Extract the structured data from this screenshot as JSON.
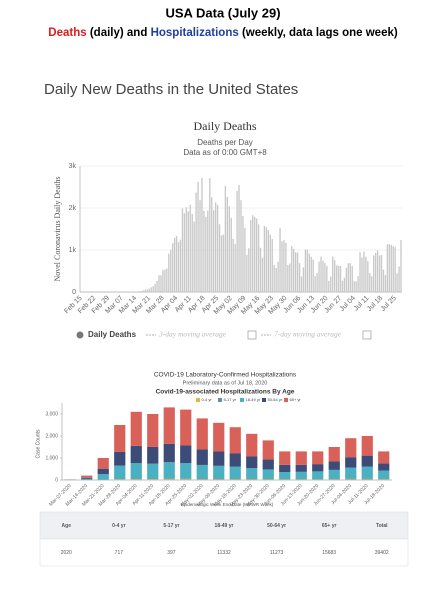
{
  "header": {
    "title": "USA Data (July 29)",
    "subtitle": [
      {
        "text": "Deaths",
        "color": "#d81e1e"
      },
      {
        "text": " (daily) and ",
        "color": "#000000"
      },
      {
        "text": "Hospitalizations",
        "color": "#1f3f9e"
      },
      {
        "text": " (weekly, data lags one week)",
        "color": "#000000"
      }
    ],
    "section_title": "Daily New Deaths in the United States"
  },
  "chart_data": [
    {
      "type": "bar",
      "title": "Daily Deaths",
      "subtitle": "Deaths per Day",
      "note": "Data as of 0:00 GMT+8",
      "y_label": "Novel Coronavirus Daily Deaths",
      "categories": [
        "Feb 15",
        null,
        null,
        null,
        null,
        null,
        null,
        "Feb 22",
        null,
        null,
        null,
        null,
        null,
        null,
        "Feb 29",
        null,
        null,
        null,
        null,
        null,
        null,
        "Mar 07",
        null,
        null,
        null,
        null,
        null,
        null,
        "Mar 14",
        null,
        null,
        null,
        null,
        null,
        null,
        "Mar 21",
        null,
        null,
        null,
        null,
        null,
        null,
        "Mar 28",
        null,
        null,
        null,
        null,
        null,
        null,
        "Apr 04",
        null,
        null,
        null,
        null,
        null,
        null,
        "Apr 11",
        null,
        null,
        null,
        null,
        null,
        null,
        "Apr 18",
        null,
        null,
        null,
        null,
        null,
        null,
        "Apr 25",
        null,
        null,
        null,
        null,
        null,
        null,
        "May 02",
        null,
        null,
        null,
        null,
        null,
        null,
        "May 09",
        null,
        null,
        null,
        null,
        null,
        null,
        "May 16",
        null,
        null,
        null,
        null,
        null,
        null,
        "May 23",
        null,
        null,
        null,
        null,
        null,
        null,
        "May 30",
        null,
        null,
        null,
        null,
        null,
        null,
        "Jun 06",
        null,
        null,
        null,
        null,
        null,
        null,
        "Jun 13",
        null,
        null,
        null,
        null,
        null,
        null,
        "Jun 20",
        null,
        null,
        null,
        null,
        null,
        null,
        "Jun 27",
        null,
        null,
        null,
        null,
        null,
        null,
        "Jul 04",
        null,
        null,
        null,
        null,
        null,
        null,
        "Jul 11",
        null,
        null,
        null,
        null,
        null,
        null,
        "Jul 18",
        null,
        null,
        null,
        null,
        null,
        null,
        "Jul 25",
        null,
        null,
        null
      ],
      "series": [
        {
          "name": "Daily Deaths",
          "color": "#c9c9c9",
          "values": [
            0,
            0,
            0,
            0,
            0,
            0,
            0,
            0,
            0,
            0,
            0,
            0,
            0,
            0,
            1,
            1,
            4,
            1,
            4,
            1,
            2,
            3,
            4,
            4,
            6,
            8,
            8,
            10,
            10,
            13,
            19,
            23,
            37,
            58,
            57,
            80,
            110,
            137,
            196,
            266,
            397,
            399,
            521,
            532,
            561,
            913,
            1011,
            1165,
            1290,
            1331,
            1187,
            1247,
            1991,
            1878,
            2016,
            1919,
            2078,
            1858,
            1678,
            2367,
            2625,
            2187,
            2715,
            1931,
            1789,
            1939,
            2711,
            2256,
            1946,
            2134,
            2076,
            1614,
            1346,
            1369,
            2526,
            2261,
            2043,
            1765,
            1266,
            1142,
            2404,
            2549,
            2184,
            1809,
            1523,
            886,
            1042,
            1713,
            1828,
            1790,
            1751,
            1610,
            1052,
            814,
            1576,
            1541,
            1474,
            1370,
            1261,
            645,
            571,
            720,
            1526,
            1208,
            1233,
            1170,
            643,
            679,
            1092,
            1029,
            946,
            941,
            687,
            373,
            589,
            1009,
            1013,
            913,
            837,
            770,
            377,
            450,
            724,
            840,
            747,
            691,
            624,
            265,
            369,
            845,
            756,
            635,
            625,
            619,
            266,
            341,
            580,
            684,
            689,
            616,
            257,
            254,
            377,
            946,
            820,
            963,
            839,
            732,
            450,
            376,
            870,
            927,
            989,
            866,
            880,
            533,
            408,
            1135,
            1140,
            1124,
            1090,
            1067,
            444,
            608,
            1240
          ]
        }
      ],
      "hidden_series": [
        {
          "name": "3-day moving average"
        },
        {
          "name": "7-day moving average"
        }
      ],
      "ylim": [
        0,
        3000
      ],
      "yticks": [
        0,
        {
          "value": 1000,
          "label": "1k"
        },
        {
          "value": 2000,
          "label": "2k"
        },
        {
          "value": 3000,
          "label": "3k"
        }
      ],
      "grid": true
    },
    {
      "type": "stacked_bar",
      "title": "COVID-19 Laboratory-Confirmed Hospitalizations",
      "subtitle": "Preliminary data as of Jul 18, 2020",
      "heading": "Covid-19-associated Hospitalizations By Age",
      "y_label": "Case Counts",
      "x_label": "Epidemiologic Week End Date (MMWR Week)",
      "categories": [
        "Mar-07-2020",
        "Mar-14-2020",
        "Mar-21-2020",
        "Mar-28-2020",
        "Apr-04-2020",
        "Apr-11-2020",
        "Apr-18-2020",
        "Apr-25-2020",
        "May-02-2020",
        "May-09-2020",
        "May-16-2020",
        "May-23-2020",
        "May-30-2020",
        "Jun-06-2020",
        "Jun-13-2020",
        "Jun-20-2020",
        "Jun-27-2020",
        "Jul-04-2020",
        "Jul-11-2020",
        "Jul-18-2020"
      ],
      "series": [
        {
          "name": "0-4 yr",
          "color": "#e8b14a",
          "values": [
            0,
            2,
            10,
            25,
            30,
            30,
            35,
            35,
            30,
            30,
            30,
            25,
            25,
            20,
            20,
            20,
            25,
            30,
            30,
            25
          ]
        },
        {
          "name": "5-17 yr",
          "color": "#6b88b0",
          "values": [
            0,
            1,
            5,
            10,
            12,
            12,
            15,
            15,
            15,
            15,
            15,
            15,
            15,
            12,
            12,
            12,
            15,
            18,
            18,
            12
          ]
        },
        {
          "name": "18-49 yr",
          "color": "#4bb0c2",
          "values": [
            5,
            50,
            250,
            620,
            730,
            700,
            760,
            720,
            640,
            600,
            560,
            500,
            440,
            330,
            340,
            360,
            420,
            520,
            560,
            390
          ]
        },
        {
          "name": "50-64 yr",
          "color": "#3d4b78",
          "values": [
            5,
            50,
            250,
            620,
            780,
            760,
            830,
            800,
            700,
            650,
            600,
            530,
            450,
            330,
            320,
            330,
            380,
            470,
            500,
            330
          ]
        },
        {
          "name": "65+ yr",
          "color": "#d8625a",
          "values": [
            10,
            97,
            485,
            1225,
            1548,
            1498,
            1660,
            1630,
            1415,
            1305,
            1195,
            1030,
            870,
            608,
            608,
            578,
            660,
            862,
            892,
            543
          ]
        }
      ],
      "ylim": [
        0,
        3500
      ],
      "yticks": [
        0,
        {
          "value": 1000,
          "label": "1,000"
        },
        {
          "value": 2000,
          "label": "2,000"
        },
        {
          "value": 3000,
          "label": "3,000"
        }
      ],
      "grid": false
    }
  ],
  "table": {
    "rows": [
      [
        "Age",
        "0-4 yr",
        "5-17 yr",
        "18-49 yr",
        "50-64 yr",
        "65+ yr",
        "Total"
      ],
      [
        "2020",
        "717",
        "397",
        "11332",
        "11273",
        "15683",
        "39402"
      ]
    ]
  }
}
